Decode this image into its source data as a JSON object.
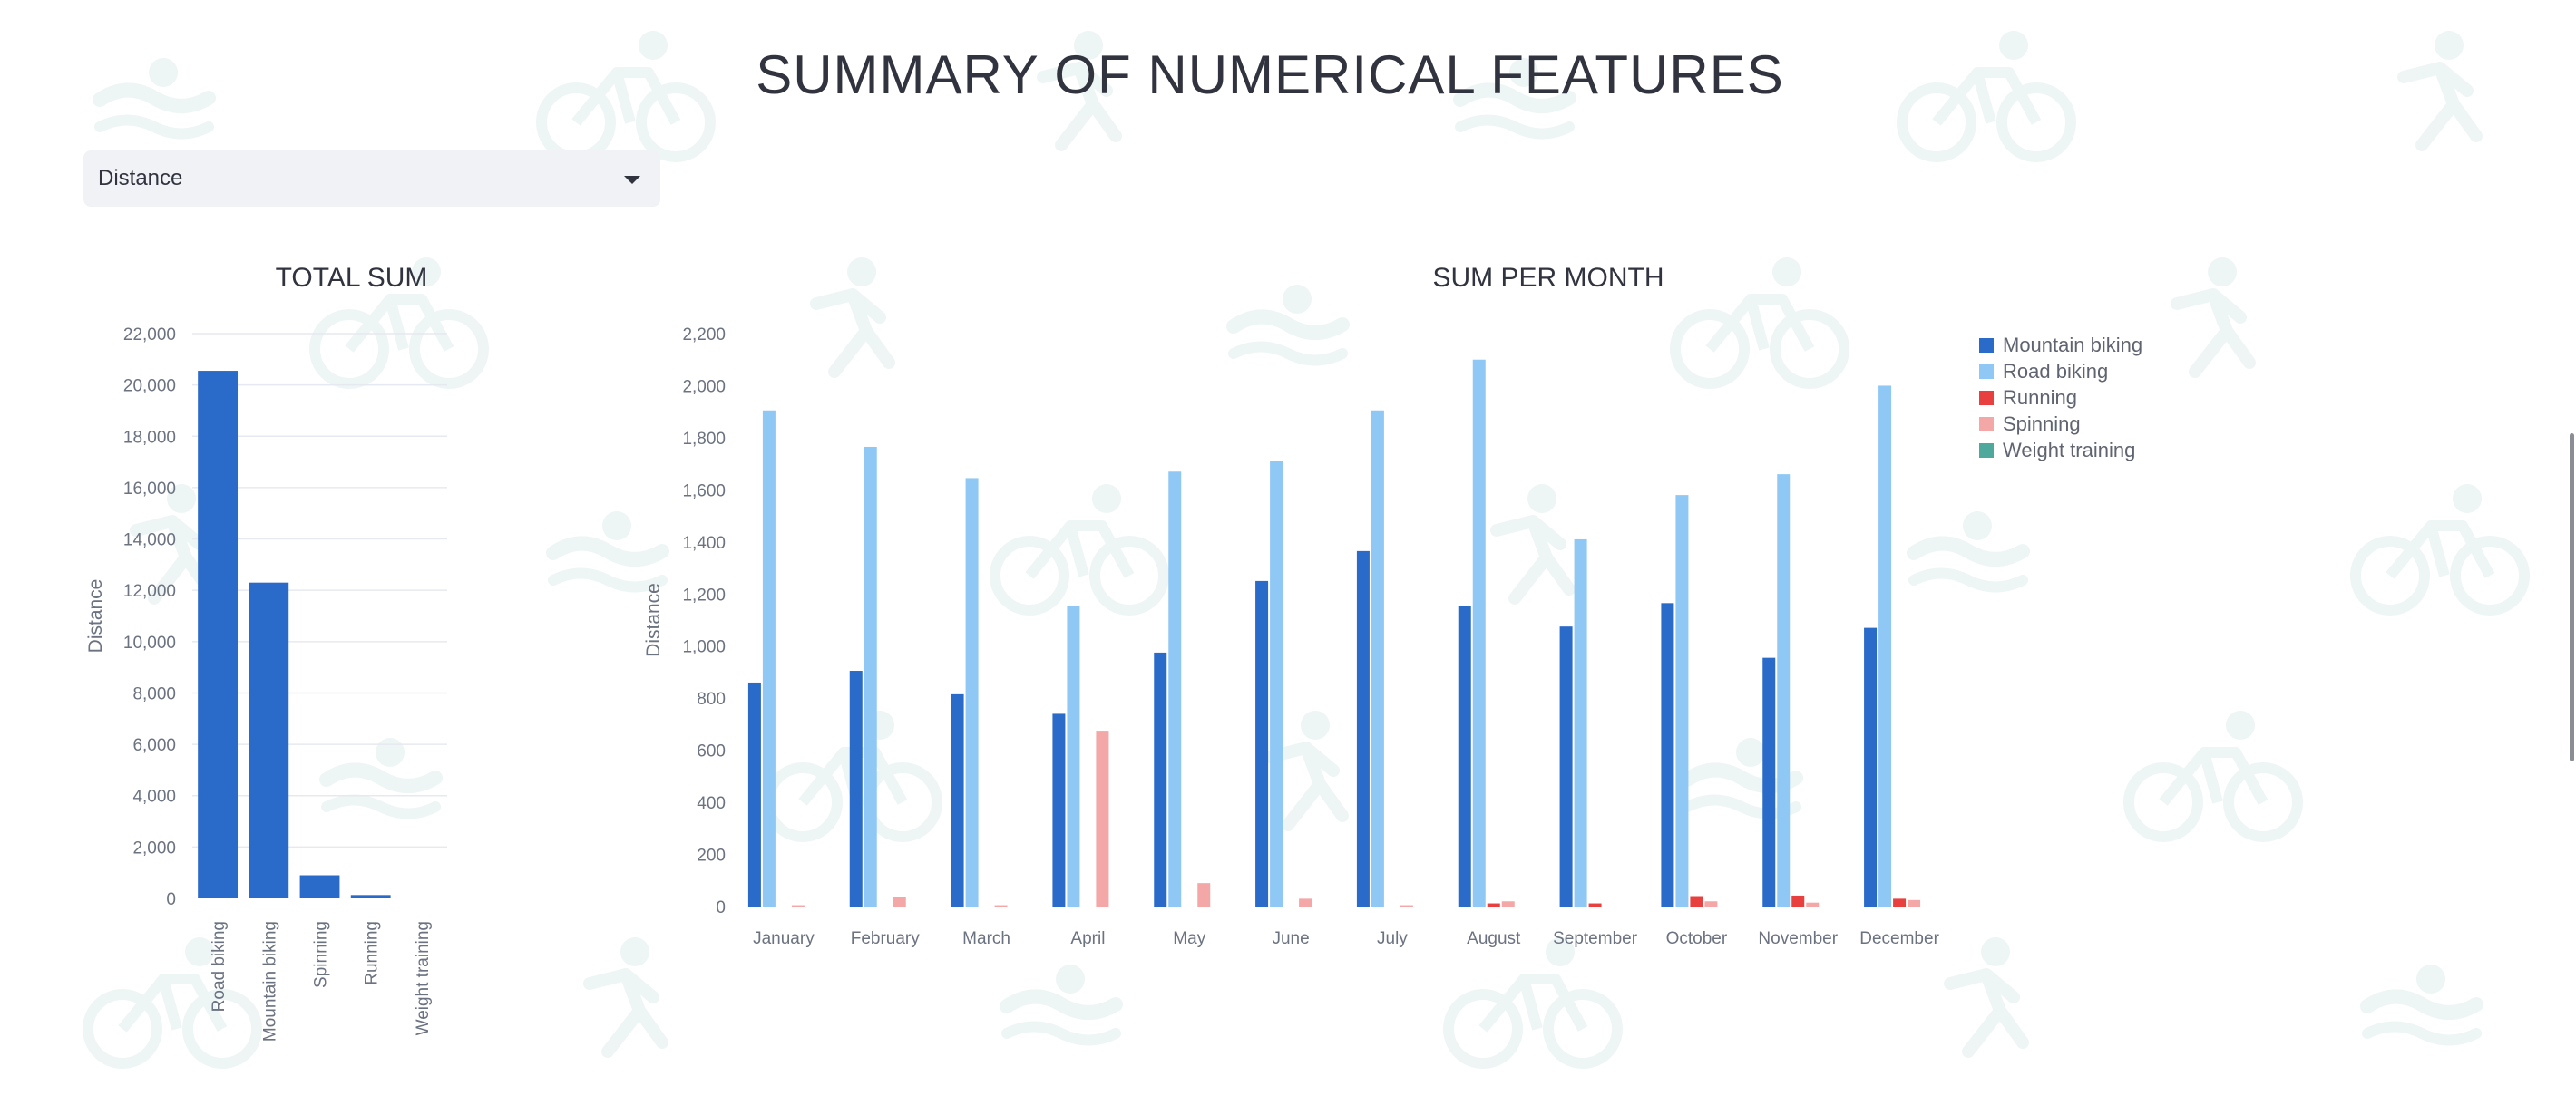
{
  "page": {
    "title": "SUMMARY OF NUMERICAL FEATURES"
  },
  "selector": {
    "value": "Distance"
  },
  "colors": {
    "background_icons": "#e9f2f2",
    "gridline": "#e6e9ef",
    "axis_text": "#6b7280",
    "mountain_biking": "#2a6ac8",
    "road_biking": "#90c8f5",
    "running": "#e8403f",
    "spinning": "#f4a7a7",
    "weight_training": "#4fa89c"
  },
  "icons": {
    "background_pattern": [
      "swimmer-icon",
      "cyclist-icon",
      "runner-icon"
    ],
    "select_caret": "caret-down-icon"
  },
  "chart_data": [
    {
      "type": "bar",
      "title": "TOTAL SUM",
      "xlabel": "",
      "ylabel": "Distance",
      "categories": [
        "Road biking",
        "Mountain biking",
        "Spinning",
        "Running",
        "Weight training"
      ],
      "values": [
        20550,
        12300,
        900,
        130,
        0
      ],
      "ylim": [
        0,
        22000
      ],
      "yticks": [
        0,
        2000,
        4000,
        6000,
        8000,
        10000,
        12000,
        14000,
        16000,
        18000,
        20000,
        22000
      ],
      "ytick_labels": [
        "0",
        "2,000",
        "4,000",
        "6,000",
        "8,000",
        "10,000",
        "12,000",
        "14,000",
        "16,000",
        "18,000",
        "20,000",
        "22,000"
      ],
      "color": "#2a6ac8",
      "grid": true
    },
    {
      "type": "bar",
      "title": "SUM PER MONTH",
      "xlabel": "",
      "ylabel": "Distance",
      "categories": [
        "January",
        "February",
        "March",
        "April",
        "May",
        "June",
        "July",
        "August",
        "September",
        "October",
        "November",
        "December"
      ],
      "ylim": [
        0,
        2200
      ],
      "yticks": [
        0,
        200,
        400,
        600,
        800,
        1000,
        1200,
        1400,
        1600,
        1800,
        2000,
        2200
      ],
      "ytick_labels": [
        "0",
        "200",
        "400",
        "600",
        "800",
        "1,000",
        "1,200",
        "1,400",
        "1,600",
        "1,800",
        "2,000",
        "2,200"
      ],
      "grid": false,
      "legend_position": "top-right",
      "series": [
        {
          "name": "Mountain biking",
          "color": "#2a6ac8",
          "values": [
            860,
            905,
            815,
            740,
            975,
            1250,
            1365,
            1155,
            1075,
            1165,
            955,
            1070
          ]
        },
        {
          "name": "Road biking",
          "color": "#90c8f5",
          "values": [
            1905,
            1765,
            1645,
            1155,
            1670,
            1710,
            1905,
            2100,
            1410,
            1580,
            1660,
            2000
          ]
        },
        {
          "name": "Running",
          "color": "#e8403f",
          "values": [
            0,
            0,
            0,
            0,
            0,
            0,
            0,
            12,
            12,
            40,
            42,
            30
          ]
        },
        {
          "name": "Spinning",
          "color": "#f4a7a7",
          "values": [
            5,
            35,
            5,
            675,
            90,
            30,
            5,
            20,
            0,
            20,
            15,
            25
          ]
        },
        {
          "name": "Weight training",
          "color": "#4fa89c",
          "values": [
            0,
            0,
            0,
            0,
            0,
            0,
            0,
            0,
            0,
            0,
            0,
            0
          ]
        }
      ]
    }
  ]
}
